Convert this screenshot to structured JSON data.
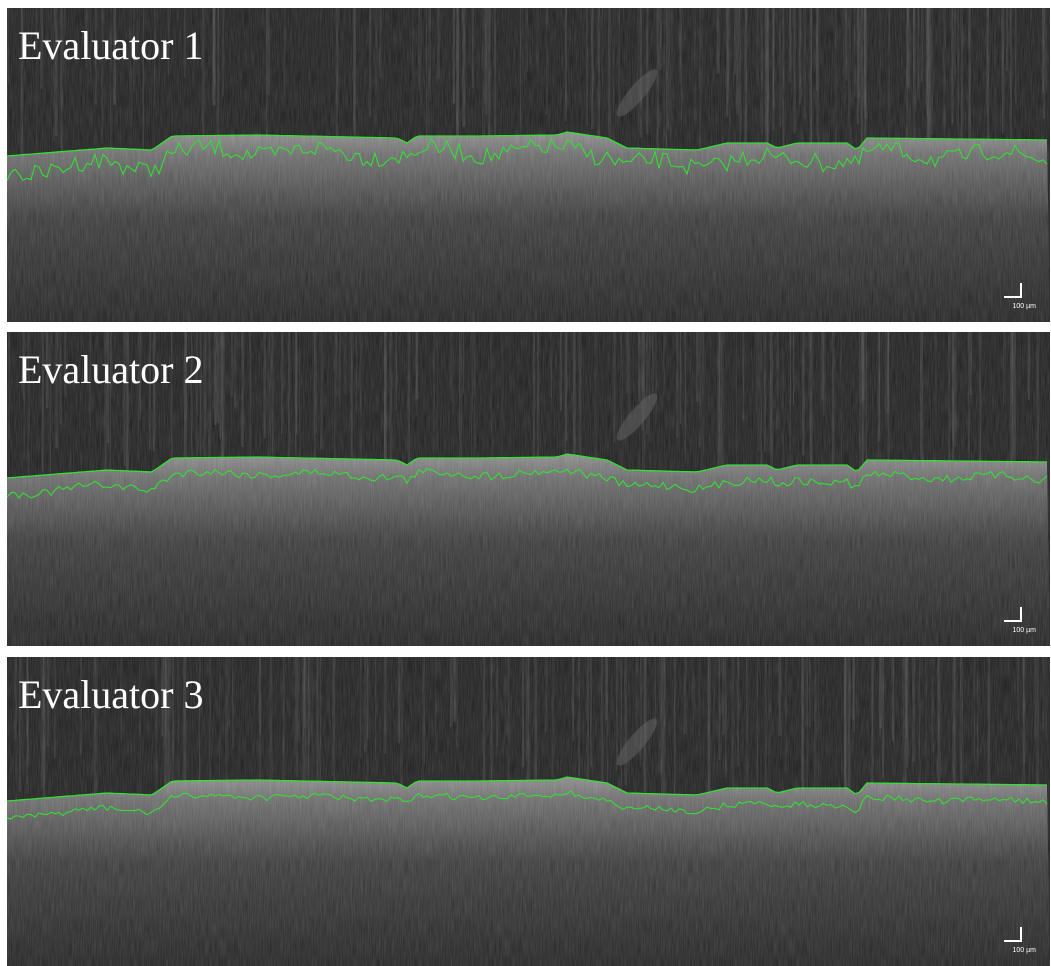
{
  "panels": [
    {
      "label": "Evaluator 1",
      "scale_bar": "100 µm"
    },
    {
      "label": "Evaluator 2",
      "scale_bar": "100 µm"
    },
    {
      "label": "Evaluator 3",
      "scale_bar": "100 µm"
    }
  ]
}
